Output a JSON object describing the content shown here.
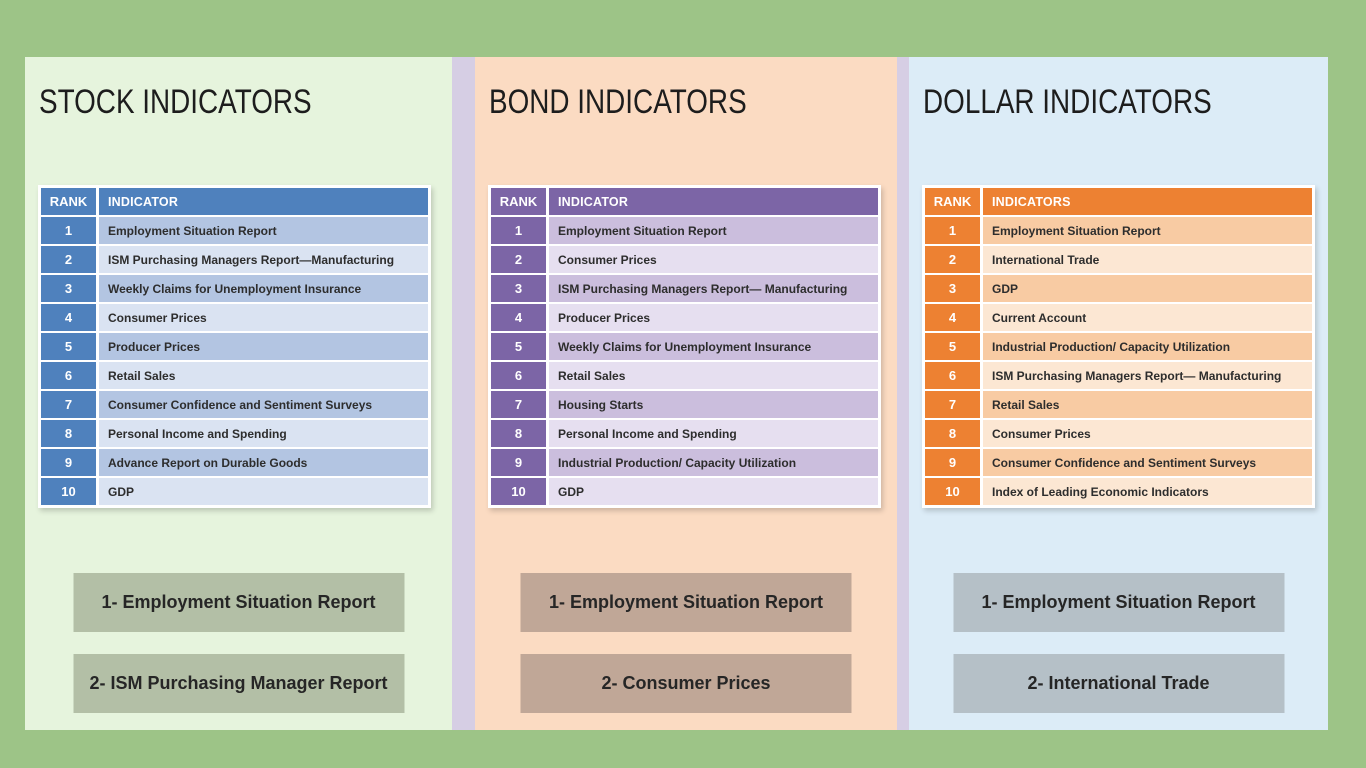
{
  "page": {
    "background": "#9dc487",
    "divider_color": "#d6cee4"
  },
  "panels": [
    {
      "id": "stock",
      "title": "STOCK INDICATORS",
      "colors": {
        "panel_background": "#e6f4dd",
        "accent": "#4f81bd",
        "row_band_dark": "#b3c5e2",
        "row_band_light": "#dae3f2",
        "highlight_background": "#b3bfa6"
      },
      "table": {
        "header": {
          "rank": "RANK",
          "indicator": "INDICATOR"
        },
        "rows": [
          {
            "rank": "1",
            "indicator": "Employment Situation Report"
          },
          {
            "rank": "2",
            "indicator": "ISM Purchasing Managers Report—Manufacturing"
          },
          {
            "rank": "3",
            "indicator": "Weekly Claims for Unemployment Insurance"
          },
          {
            "rank": "4",
            "indicator": "Consumer Prices"
          },
          {
            "rank": "5",
            "indicator": "Producer Prices"
          },
          {
            "rank": "6",
            "indicator": "Retail Sales"
          },
          {
            "rank": "7",
            "indicator": "Consumer Confidence and Sentiment Surveys"
          },
          {
            "rank": "8",
            "indicator": "Personal Income and Spending"
          },
          {
            "rank": "9",
            "indicator": "Advance Report on Durable Goods"
          },
          {
            "rank": "10",
            "indicator": "GDP"
          }
        ]
      },
      "highlights": [
        {
          "label": "1- Employment Situation Report"
        },
        {
          "label": "2- ISM Purchasing Manager Report"
        }
      ]
    },
    {
      "id": "bond",
      "title": "BOND INDICATORS",
      "colors": {
        "panel_background": "#fbdbc2",
        "accent": "#7c65a6",
        "row_band_dark": "#cbbedd",
        "row_band_light": "#e6dff0",
        "highlight_background": "#c0a797"
      },
      "table": {
        "header": {
          "rank": "RANK",
          "indicator": "INDICATOR"
        },
        "rows": [
          {
            "rank": "1",
            "indicator": "Employment Situation Report"
          },
          {
            "rank": "2",
            "indicator": "Consumer Prices"
          },
          {
            "rank": "3",
            "indicator": "ISM Purchasing Managers Report— Manufacturing"
          },
          {
            "rank": "4",
            "indicator": "Producer Prices"
          },
          {
            "rank": "5",
            "indicator": "Weekly Claims for Unemployment Insurance"
          },
          {
            "rank": "6",
            "indicator": "Retail Sales"
          },
          {
            "rank": "7",
            "indicator": "Housing Starts"
          },
          {
            "rank": "8",
            "indicator": "Personal Income and Spending"
          },
          {
            "rank": "9",
            "indicator": "Industrial Production/ Capacity Utilization"
          },
          {
            "rank": "10",
            "indicator": "GDP"
          }
        ]
      },
      "highlights": [
        {
          "label": "1- Employment Situation Report"
        },
        {
          "label": "2- Consumer Prices"
        }
      ]
    },
    {
      "id": "dollar",
      "title": "DOLLAR INDICATORS",
      "colors": {
        "panel_background": "#dcecf7",
        "accent": "#ed8132",
        "row_band_dark": "#f8cba3",
        "row_band_light": "#fce7d3",
        "highlight_background": "#b5c0c7"
      },
      "table": {
        "header": {
          "rank": "RANK",
          "indicator": "INDICATORS"
        },
        "rows": [
          {
            "rank": "1",
            "indicator": "Employment Situation Report"
          },
          {
            "rank": "2",
            "indicator": "International Trade"
          },
          {
            "rank": "3",
            "indicator": "GDP"
          },
          {
            "rank": "4",
            "indicator": "Current Account"
          },
          {
            "rank": "5",
            "indicator": "Industrial Production/ Capacity Utilization"
          },
          {
            "rank": "6",
            "indicator": "ISM Purchasing Managers Report— Manufacturing"
          },
          {
            "rank": "7",
            "indicator": "Retail Sales"
          },
          {
            "rank": "8",
            "indicator": "Consumer Prices"
          },
          {
            "rank": "9",
            "indicator": "Consumer Confidence and Sentiment Surveys"
          },
          {
            "rank": "10",
            "indicator": "Index of Leading Economic Indicators"
          }
        ]
      },
      "highlights": [
        {
          "label": "1- Employment Situation Report"
        },
        {
          "label": "2- International Trade"
        }
      ]
    }
  ]
}
